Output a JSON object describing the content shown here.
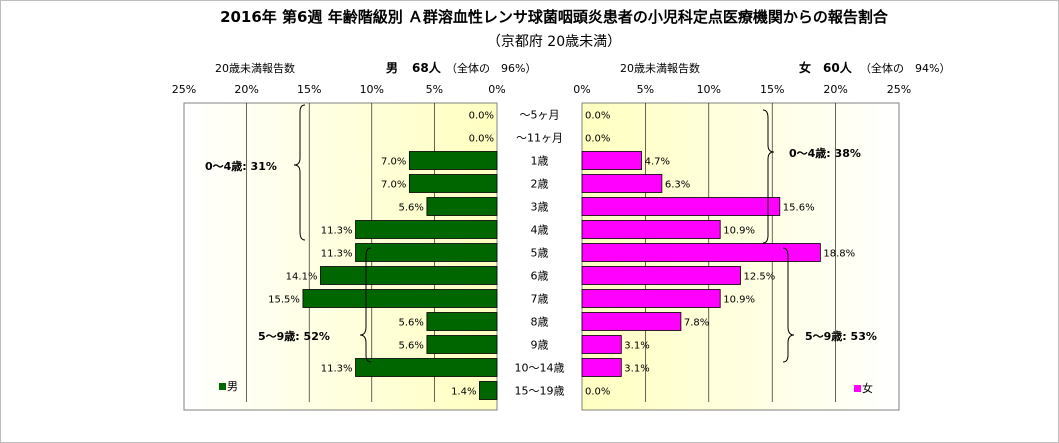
{
  "title": "2016年 第6週 年齢階級別 Ａ群溶血性レンサ球菌咽頭炎患者の小児科定点医療機関からの報告割合",
  "subtitle": "（京都府 20歳未満）",
  "colors": {
    "male": "#006600",
    "female": "#ff00ff",
    "plot_bg": "#fffff0"
  },
  "left_panel": {
    "header_label": "20歳未満報告数",
    "sex_label": "男",
    "count_label": "68人",
    "share_label": "（全体の　96%）",
    "legend_label": "男",
    "brace_labels": [
      "0～4歳: 31%",
      "5～9歳: 52%"
    ]
  },
  "right_panel": {
    "header_label": "20歳未満報告数",
    "sex_label": "女",
    "count_label": "60人",
    "share_label": "（全体の　94%）",
    "legend_label": "女",
    "brace_labels": [
      "0～4歳: 38%",
      "5～9歳: 53%"
    ]
  },
  "chart_data": {
    "type": "bar",
    "orientation": "horizontal-population-pyramid",
    "categories": [
      "～5ヶ月",
      "～11ヶ月",
      "1歳",
      "2歳",
      "3歳",
      "4歳",
      "5歳",
      "6歳",
      "7歳",
      "8歳",
      "9歳",
      "10～14歳",
      "15～19歳"
    ],
    "series": [
      {
        "name": "男",
        "values": [
          0.0,
          0.0,
          7.0,
          7.0,
          5.6,
          11.3,
          11.3,
          14.1,
          15.5,
          5.6,
          5.6,
          11.3,
          1.4
        ],
        "labels": [
          "0.0%",
          "0.0%",
          "7.0%",
          "7.0%",
          "5.6%",
          "11.3%",
          "11.3%",
          "14.1%",
          "15.5%",
          "5.6%",
          "5.6%",
          "11.3%",
          "1.4%"
        ]
      },
      {
        "name": "女",
        "values": [
          0.0,
          0.0,
          4.7,
          6.3,
          15.6,
          10.9,
          18.8,
          12.5,
          10.9,
          7.8,
          3.1,
          3.1,
          0.0
        ],
        "labels": [
          "0.0%",
          "0.0%",
          "4.7%",
          "6.3%",
          "15.6%",
          "10.9%",
          "18.8%",
          "12.5%",
          "10.9%",
          "7.8%",
          "3.1%",
          "3.1%",
          "0.0%"
        ]
      }
    ],
    "xlim": [
      0,
      25
    ],
    "left_ticks": [
      "25%",
      "20%",
      "15%",
      "10%",
      "5%",
      "0%"
    ],
    "right_ticks": [
      "0%",
      "5%",
      "10%",
      "15%",
      "20%",
      "25%"
    ],
    "grid": true
  }
}
